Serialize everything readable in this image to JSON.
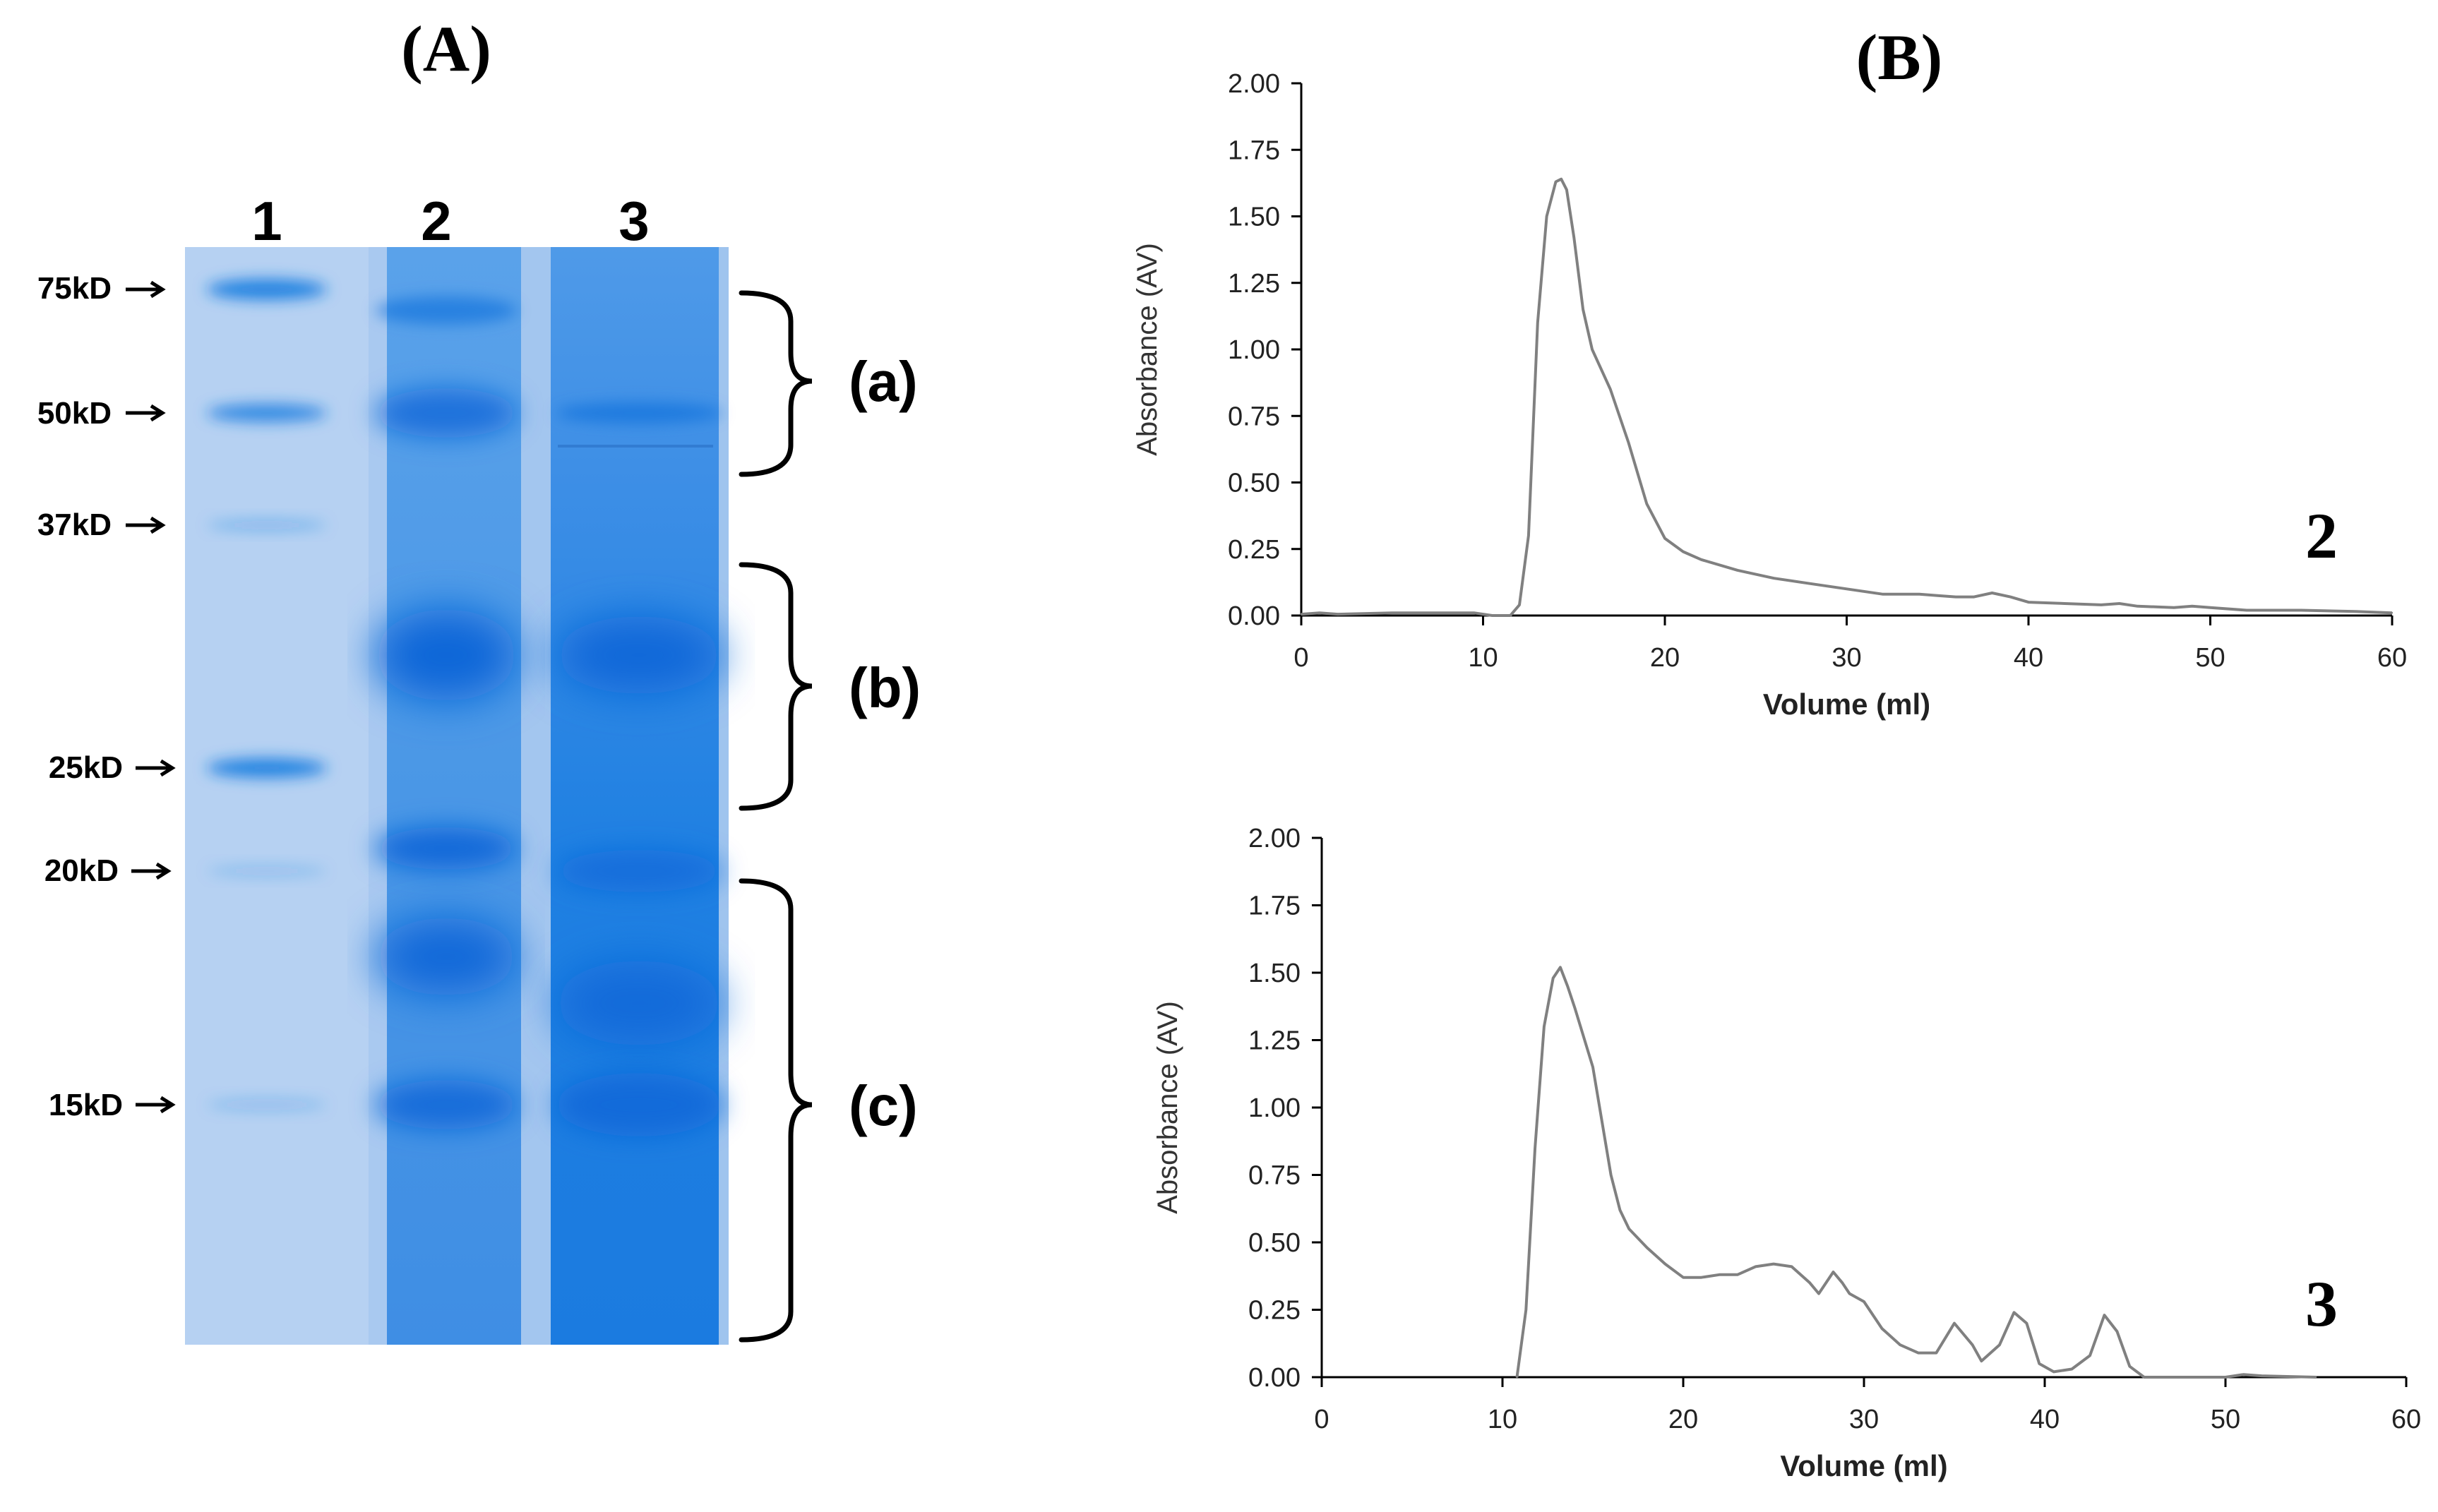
{
  "panels": {
    "A": {
      "label": "(A)"
    },
    "B": {
      "label": "(B)"
    }
  },
  "gel": {
    "lanes": [
      {
        "label": "1",
        "bands_kD": [
          75,
          50,
          37,
          25,
          20,
          15
        ]
      },
      {
        "label": "2",
        "bands_kD": [
          70,
          50,
          30,
          21,
          18,
          15
        ]
      },
      {
        "label": "3",
        "bands_kD": [
          50,
          30,
          20,
          17,
          15
        ]
      }
    ],
    "markers": [
      {
        "text": "75kD",
        "kD": 75
      },
      {
        "text": "50kD",
        "kD": 50
      },
      {
        "text": "37kD",
        "kD": 37
      },
      {
        "text": "25kD",
        "kD": 25
      },
      {
        "text": "20kD",
        "kD": 20
      },
      {
        "text": "15kD",
        "kD": 15
      }
    ],
    "regions": [
      {
        "label": "(a)",
        "from_kD": 75,
        "to_kD": 48
      },
      {
        "label": "(b)",
        "from_kD": 35,
        "to_kD": 23
      },
      {
        "label": "(c)",
        "from_kD": 20,
        "to_kD": 10
      }
    ],
    "colors": {
      "gel_light": "#a9c9f0",
      "band": "#1f7fe0",
      "band_dark": "#0b66d8"
    }
  },
  "chart_data": [
    {
      "type": "line",
      "sample_label": "2",
      "xlabel": "Volume (ml)",
      "ylabel": "Absorbance (AV)",
      "xlim": [
        0,
        60
      ],
      "ylim": [
        0,
        2
      ],
      "xticks": [
        "0",
        "10",
        "20",
        "30",
        "40",
        "50",
        "60"
      ],
      "yticks": [
        "0.00",
        "0.25",
        "0.50",
        "0.75",
        "1.00",
        "1.25",
        "1.50",
        "1.75",
        "2.00"
      ],
      "series": [
        {
          "name": "2",
          "color": "#808080",
          "x": [
            0,
            1,
            2,
            5,
            9.5,
            10.5,
            11.5,
            12.0,
            12.5,
            13.0,
            13.5,
            14.0,
            14.3,
            14.6,
            15.0,
            15.5,
            16.0,
            17.0,
            18.0,
            19.0,
            20.0,
            21.0,
            22.0,
            24.0,
            26.0,
            28.0,
            30.0,
            32.0,
            34.0,
            35.0,
            36.0,
            37.0,
            38.0,
            39.0,
            40.0,
            42.0,
            44.0,
            45.0,
            46.0,
            48.0,
            49.0,
            50.0,
            52.0,
            55.0,
            58.0,
            60.0
          ],
          "y": [
            0.005,
            0.01,
            0.005,
            0.01,
            0.01,
            0.0,
            0.0,
            0.04,
            0.3,
            1.1,
            1.5,
            1.63,
            1.64,
            1.6,
            1.42,
            1.15,
            1.0,
            0.85,
            0.65,
            0.42,
            0.29,
            0.24,
            0.21,
            0.17,
            0.14,
            0.12,
            0.1,
            0.08,
            0.08,
            0.075,
            0.07,
            0.07,
            0.085,
            0.07,
            0.05,
            0.045,
            0.04,
            0.045,
            0.035,
            0.03,
            0.035,
            0.03,
            0.02,
            0.02,
            0.015,
            0.01
          ]
        }
      ]
    },
    {
      "type": "line",
      "sample_label": "3",
      "xlabel": "Volume (ml)",
      "ylabel": "Absorbance (AV)",
      "xlim": [
        0,
        60
      ],
      "ylim": [
        0,
        2
      ],
      "xticks": [
        "0",
        "10",
        "20",
        "30",
        "40",
        "50",
        "60"
      ],
      "yticks": [
        "0.00",
        "0.25",
        "0.50",
        "0.75",
        "1.00",
        "1.25",
        "1.50",
        "1.75",
        "2.00"
      ],
      "series": [
        {
          "name": "3",
          "color": "#808080",
          "x": [
            10.8,
            11.3,
            11.8,
            12.3,
            12.8,
            13.2,
            13.6,
            14.0,
            15.0,
            16.0,
            16.5,
            17.0,
            18.0,
            19.0,
            20.0,
            21.0,
            22.0,
            23.0,
            24.0,
            25.0,
            26.0,
            27.0,
            27.5,
            28.3,
            28.8,
            29.2,
            30.0,
            31.0,
            32.0,
            33.0,
            34.0,
            35.0,
            36.0,
            36.5,
            37.5,
            38.3,
            39.0,
            39.7,
            40.5,
            41.5,
            42.5,
            43.3,
            44.0,
            44.7,
            45.5,
            46.5,
            50.0,
            51.0,
            52.0,
            55.0
          ],
          "y": [
            0.0,
            0.25,
            0.85,
            1.3,
            1.48,
            1.52,
            1.45,
            1.37,
            1.15,
            0.75,
            0.62,
            0.55,
            0.48,
            0.42,
            0.37,
            0.37,
            0.38,
            0.38,
            0.41,
            0.42,
            0.41,
            0.35,
            0.31,
            0.39,
            0.35,
            0.31,
            0.28,
            0.18,
            0.12,
            0.09,
            0.09,
            0.2,
            0.12,
            0.06,
            0.12,
            0.24,
            0.2,
            0.05,
            0.02,
            0.03,
            0.08,
            0.23,
            0.17,
            0.04,
            0.0,
            0.0,
            0.0,
            0.01,
            0.005,
            0.0
          ]
        }
      ]
    }
  ]
}
